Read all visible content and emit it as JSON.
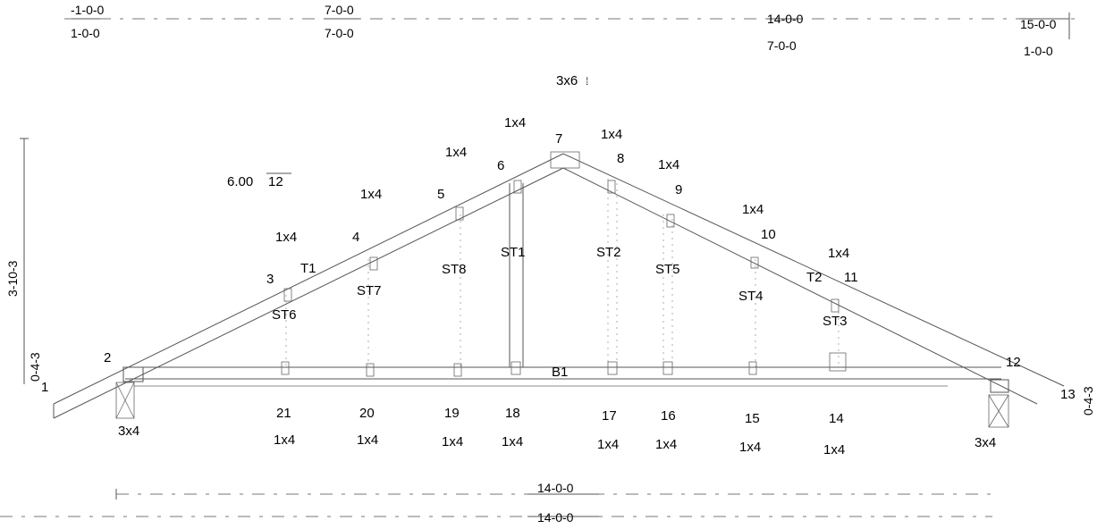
{
  "top_dimensions": [
    {
      "top": "-1-0-0",
      "bottom": "1-0-0"
    },
    {
      "top": "7-0-0",
      "bottom": "7-0-0"
    },
    {
      "top": "14-0-0",
      "bottom": "7-0-0"
    },
    {
      "top": "15-0-0",
      "bottom": "1-0-0"
    }
  ],
  "bottom_dimensions": {
    "first": "14-0-0",
    "second": "14-0-0"
  },
  "pitch": {
    "label": "6.00",
    "base": "12"
  },
  "left_heights": {
    "total": "3-10-3",
    "heel": "0-4-3"
  },
  "right_height": {
    "heel": "0-4-3"
  },
  "peak_plate": "3x6",
  "joints": [
    "1",
    "2",
    "3",
    "4",
    "5",
    "6",
    "7",
    "8",
    "9",
    "10",
    "11",
    "12",
    "13"
  ],
  "bottom_joints": [
    "21",
    "20",
    "19",
    "18",
    "17",
    "16",
    "15",
    "14"
  ],
  "top_plates": [
    "1x4",
    "1x4",
    "1x4",
    "1x4",
    "1x4",
    "1x4",
    "1x4",
    "1x4"
  ],
  "bottom_plates": [
    "1x4",
    "1x4",
    "1x4",
    "1x4",
    "1x4",
    "1x4",
    "1x4",
    "1x4"
  ],
  "support_plates": {
    "left": "3x4",
    "right": "3x4"
  },
  "members": {
    "top_left": "T1",
    "top_right": "T2",
    "bottom": "B1",
    "stiffeners": [
      "ST6",
      "ST7",
      "ST8",
      "ST1",
      "ST2",
      "ST5",
      "ST4",
      "ST3"
    ]
  }
}
